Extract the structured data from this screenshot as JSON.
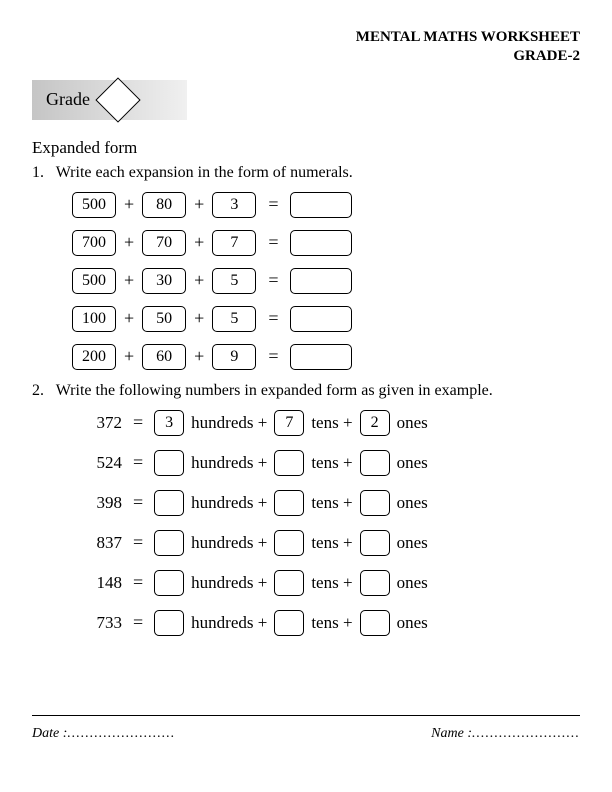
{
  "header": {
    "title_line1": "MENTAL MATHS WORKSHEET",
    "title_line2": "GRADE-2",
    "grade_label": "Grade"
  },
  "section_title": "Expanded form",
  "q1": {
    "number": "1.",
    "text": "Write each expansion in the form of numerals.",
    "rows": [
      {
        "a": "500",
        "b": "80",
        "c": "3",
        "ans": ""
      },
      {
        "a": "700",
        "b": "70",
        "c": "7",
        "ans": ""
      },
      {
        "a": "500",
        "b": "30",
        "c": "5",
        "ans": ""
      },
      {
        "a": "100",
        "b": "50",
        "c": "5",
        "ans": ""
      },
      {
        "a": "200",
        "b": "60",
        "c": "9",
        "ans": ""
      }
    ]
  },
  "q2": {
    "number": "2.",
    "text": "Write the following numbers in expanded form as given in example.",
    "unit_h": "hundreds",
    "unit_t": "tens",
    "unit_o": "ones",
    "rows": [
      {
        "n": "372",
        "h": "3",
        "t": "7",
        "o": "2"
      },
      {
        "n": "524",
        "h": "",
        "t": "",
        "o": ""
      },
      {
        "n": "398",
        "h": "",
        "t": "",
        "o": ""
      },
      {
        "n": "837",
        "h": "",
        "t": "",
        "o": ""
      },
      {
        "n": "148",
        "h": "",
        "t": "",
        "o": ""
      },
      {
        "n": "733",
        "h": "",
        "t": "",
        "o": ""
      }
    ]
  },
  "footer": {
    "date_label": "Date :",
    "name_label": "Name :",
    "dots": "........................"
  },
  "symbols": {
    "plus": "+",
    "equals": "="
  }
}
